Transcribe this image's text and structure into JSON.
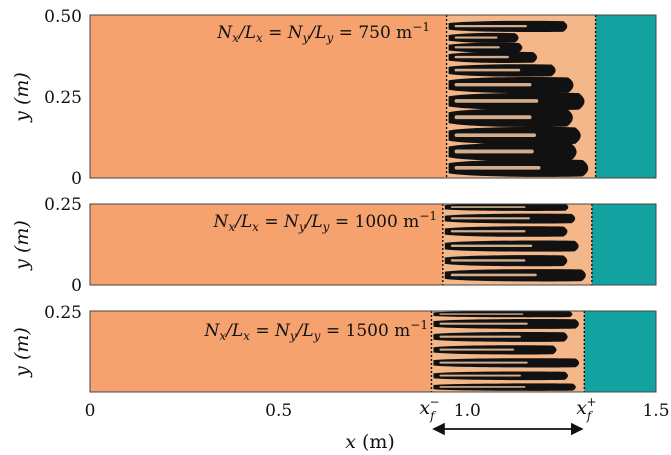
{
  "chart_data": [
    {
      "type": "heatmap",
      "annotation": {
        "prefix": "N",
        "sub1": "x",
        "slash": "/L",
        "sub2": "x",
        "eq": " = N",
        "sub3": "y",
        "slash2": "/L",
        "sub4": "y",
        "value": " = 750 m",
        "sup": "−1"
      },
      "ylabel": "y (m)",
      "yticks": [
        "0",
        "0.25",
        "0.50"
      ],
      "ylim": [
        0,
        0.5
      ],
      "xlim": [
        0,
        1.5
      ],
      "front_min": 0.945,
      "front_max": 1.34,
      "fingers": [
        {
          "y": 0.03,
          "tip": 1.33,
          "w": 0.028
        },
        {
          "y": 0.08,
          "tip": 1.3,
          "w": 0.03
        },
        {
          "y": 0.13,
          "tip": 1.31,
          "w": 0.028
        },
        {
          "y": 0.185,
          "tip": 1.29,
          "w": 0.03
        },
        {
          "y": 0.235,
          "tip": 1.32,
          "w": 0.028
        },
        {
          "y": 0.285,
          "tip": 1.29,
          "w": 0.026
        },
        {
          "y": 0.33,
          "tip": 1.24,
          "w": 0.02
        },
        {
          "y": 0.37,
          "tip": 1.19,
          "w": 0.018
        },
        {
          "y": 0.4,
          "tip": 1.15,
          "w": 0.016
        },
        {
          "y": 0.43,
          "tip": 1.14,
          "w": 0.016
        },
        {
          "y": 0.465,
          "tip": 1.27,
          "w": 0.018
        }
      ]
    },
    {
      "type": "heatmap",
      "annotation": {
        "prefix": "N",
        "sub1": "x",
        "slash": "/L",
        "sub2": "x",
        "eq": " = N",
        "sub3": "y",
        "slash2": "/L",
        "sub4": "y",
        "value": " = 1000 m",
        "sup": "−1"
      },
      "ylabel": "y (m)",
      "yticks": [
        "0",
        "0.25"
      ],
      "ylim": [
        0,
        0.25
      ],
      "xlim": [
        0,
        1.5
      ],
      "front_min": 0.935,
      "front_max": 1.33,
      "fingers": [
        {
          "y": 0.03,
          "tip": 1.32,
          "w": 0.02
        },
        {
          "y": 0.075,
          "tip": 1.27,
          "w": 0.018
        },
        {
          "y": 0.12,
          "tip": 1.3,
          "w": 0.018
        },
        {
          "y": 0.165,
          "tip": 1.27,
          "w": 0.017
        },
        {
          "y": 0.205,
          "tip": 1.29,
          "w": 0.016
        },
        {
          "y": 0.24,
          "tip": 1.27,
          "w": 0.012
        }
      ]
    },
    {
      "type": "heatmap",
      "annotation": {
        "prefix": "N",
        "sub1": "x",
        "slash": "/L",
        "sub2": "x",
        "eq": " = N",
        "sub3": "y",
        "slash2": "/L",
        "sub4": "y",
        "value": " = 1500 m",
        "sup": "−1"
      },
      "ylabel": "y (m)",
      "yticks": [
        "0.25"
      ],
      "ylim": [
        0,
        0.25
      ],
      "xlim": [
        0,
        1.5
      ],
      "front_min": 0.905,
      "front_max": 1.31,
      "fingers": [
        {
          "y": 0.015,
          "tip": 1.29,
          "w": 0.012
        },
        {
          "y": 0.05,
          "tip": 1.27,
          "w": 0.014
        },
        {
          "y": 0.09,
          "tip": 1.3,
          "w": 0.015
        },
        {
          "y": 0.13,
          "tip": 1.24,
          "w": 0.015
        },
        {
          "y": 0.17,
          "tip": 1.27,
          "w": 0.016
        },
        {
          "y": 0.21,
          "tip": 1.3,
          "w": 0.016
        },
        {
          "y": 0.24,
          "tip": 1.28,
          "w": 0.01
        }
      ]
    }
  ],
  "xaxis": {
    "ticks": [
      {
        "v": 0,
        "label": "0"
      },
      {
        "v": 0.5,
        "label": "0.5"
      },
      {
        "v": 1.0,
        "label": "1.0"
      },
      {
        "v": 1.5,
        "label": "1.5"
      }
    ],
    "label_var": "x",
    "label_unit": " (m)",
    "xf_minus": {
      "base": "x",
      "sub": "f",
      "sup": "−"
    },
    "xf_plus": {
      "base": "x",
      "sub": "f",
      "sup": "+"
    }
  },
  "colors": {
    "left_fluid": "#f5a26e",
    "right_fluid": "#12a3a1",
    "finger_dark": "#111111",
    "frame": "#333333"
  }
}
